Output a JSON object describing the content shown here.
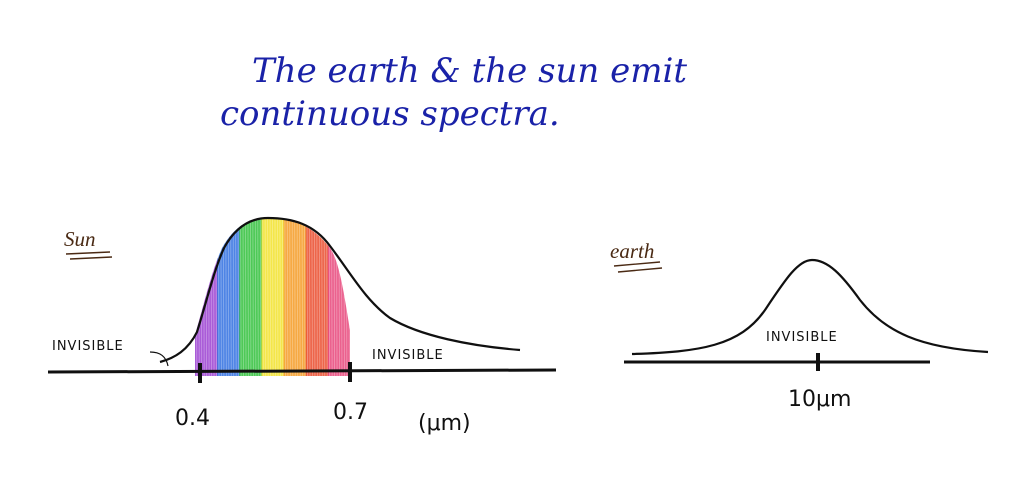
{
  "title": {
    "line1": "The earth & the sun emit",
    "line2": "continuous spectra."
  },
  "sun_panel": {
    "label": "Sun",
    "invisible_left": "INVISIBLE",
    "invisible_right": "INVISIBLE",
    "ticks": [
      {
        "label": "0.4"
      },
      {
        "label": "0.7"
      }
    ],
    "unit": "(μm)",
    "visible_colors": [
      "#9b3fd1",
      "#2f6fe0",
      "#2fbf3a",
      "#f2e22a",
      "#f59a22",
      "#ea4a2a",
      "#e8457a"
    ]
  },
  "earth_panel": {
    "label": "earth",
    "invisible": "INVISIBLE",
    "tick_label": "10μm"
  },
  "colors": {
    "ink": "#101010",
    "title_ink": "#1a22a8",
    "label_ink": "#4a2a14"
  }
}
